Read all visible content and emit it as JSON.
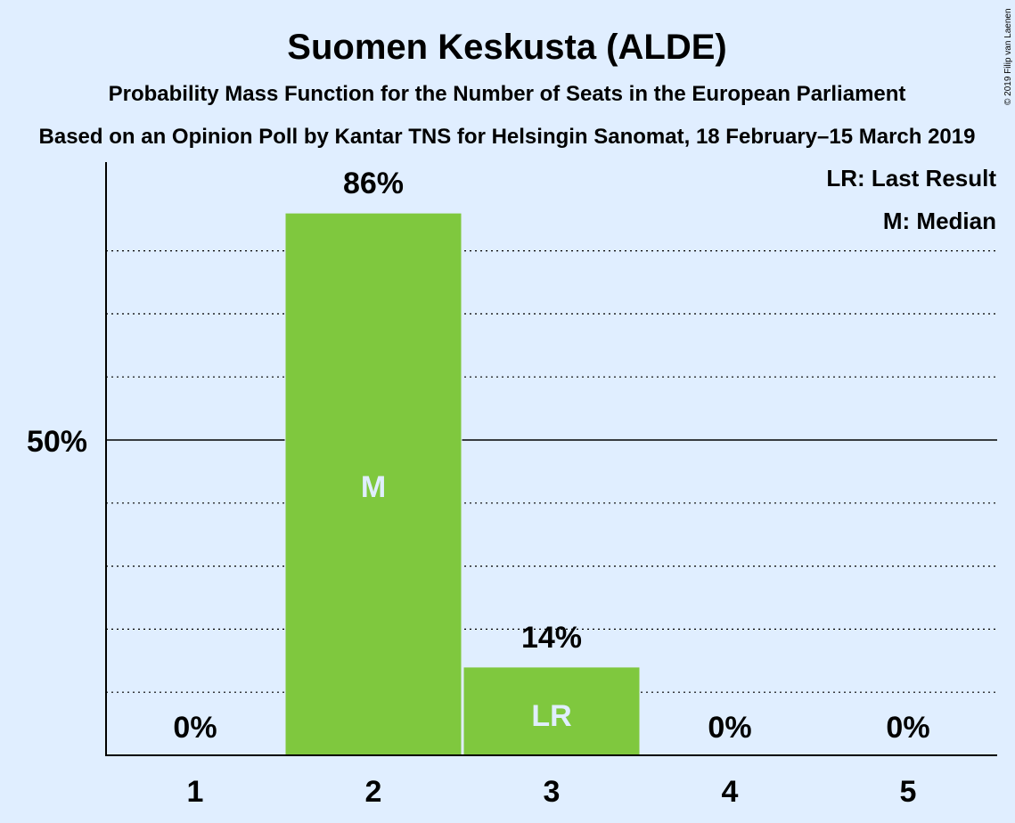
{
  "chart_data": {
    "type": "bar",
    "title": "Suomen Keskusta (ALDE)",
    "subtitle": "Probability Mass Function for the Number of Seats in the European Parliament",
    "subtitle2": "Based on an Opinion Poll by Kantar TNS for Helsingin Sanomat, 18 February–15 March 2019",
    "categories": [
      "1",
      "2",
      "3",
      "4",
      "5"
    ],
    "values": [
      0,
      86,
      14,
      0,
      0
    ],
    "value_labels": [
      "0%",
      "86%",
      "14%",
      "0%",
      "0%"
    ],
    "bar_markers": [
      "",
      "M",
      "LR",
      "",
      ""
    ],
    "ylim": [
      0,
      100
    ],
    "y_tick_label": "50%",
    "legend": [
      "LR: Last Result",
      "M: Median"
    ],
    "legend_position": "top-right",
    "grid": true,
    "colors": {
      "bar": "#7fc83e",
      "background": "#e0eeff",
      "text": "#0a1a2a"
    },
    "copyright": "© 2019 Filip van Laenen"
  }
}
